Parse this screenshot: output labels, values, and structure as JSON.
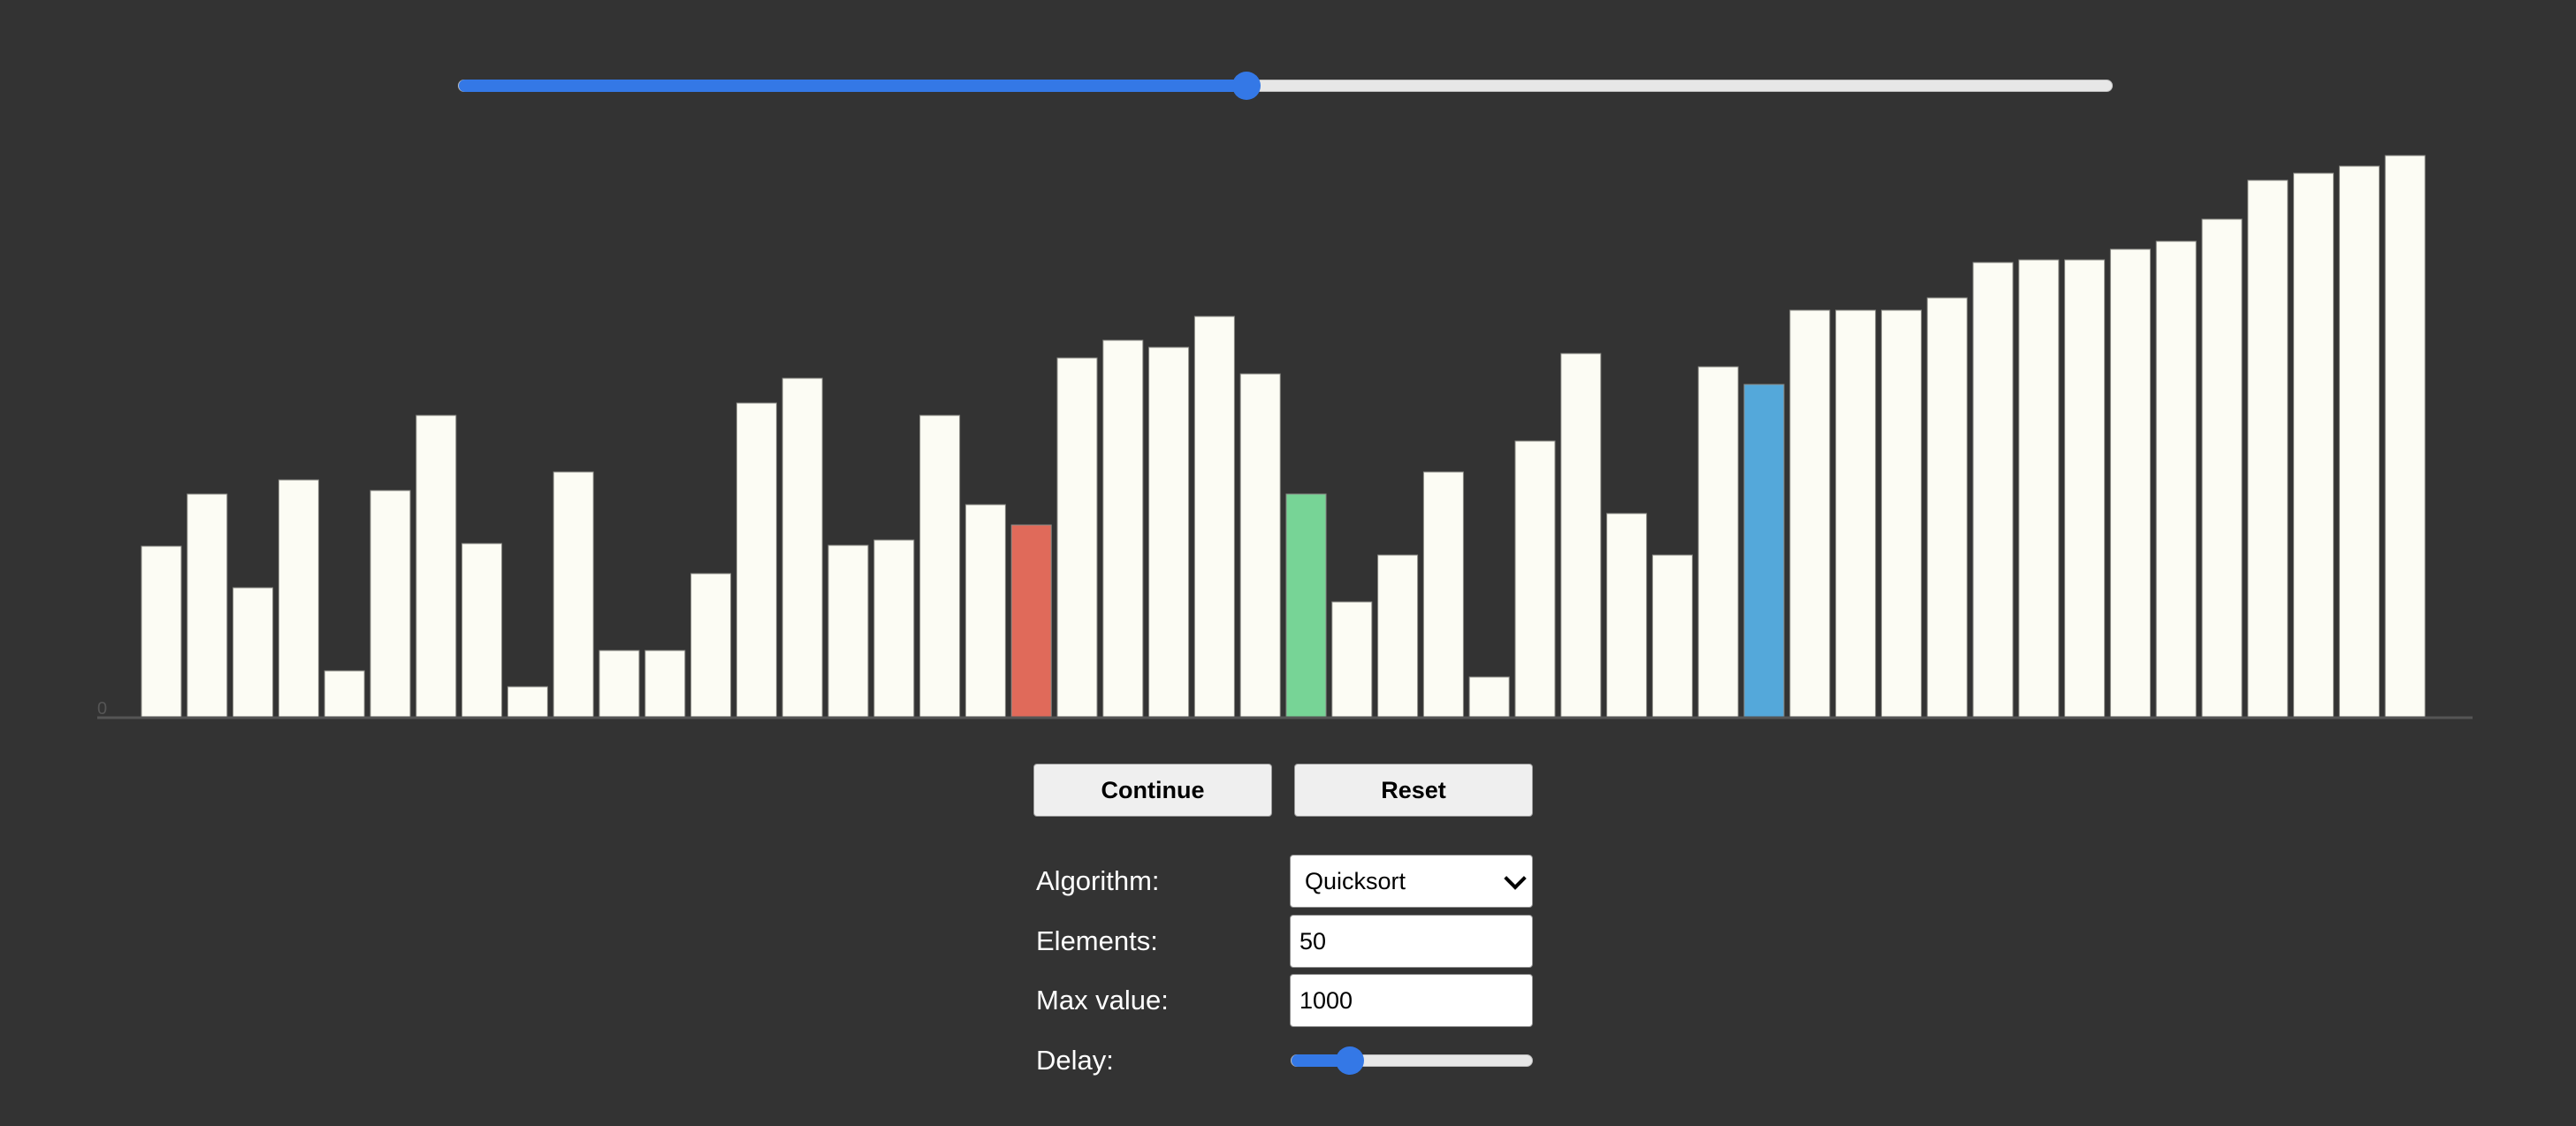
{
  "progress": {
    "fraction": 0.476
  },
  "chart_data": {
    "type": "bar",
    "y_axis_label": "0",
    "values": [
      194,
      253,
      147,
      269,
      53,
      257,
      342,
      197,
      35,
      278,
      76,
      76,
      163,
      356,
      384,
      195,
      201,
      342,
      241,
      218,
      407,
      427,
      419,
      454,
      389,
      253,
      131,
      184,
      278,
      46,
      313,
      412,
      231,
      184,
      397,
      377,
      461,
      461,
      461,
      475,
      515,
      518,
      518,
      530,
      539,
      564,
      608,
      616,
      624,
      636
    ],
    "max_value": 1000,
    "highlights": {
      "19": "#e06a5a",
      "25": "#77d496",
      "35": "#54a8da"
    },
    "bar_color": "#fcfcf4",
    "axis_color": "#555555"
  },
  "buttons": {
    "continue_label": "Continue",
    "reset_label": "Reset"
  },
  "form": {
    "algorithm_label": "Algorithm:",
    "algorithm_value": "Quicksort",
    "elements_label": "Elements:",
    "elements_value": "50",
    "max_value_label": "Max value:",
    "max_value_value": "1000",
    "delay_label": "Delay:",
    "delay_fraction": 0.24
  }
}
